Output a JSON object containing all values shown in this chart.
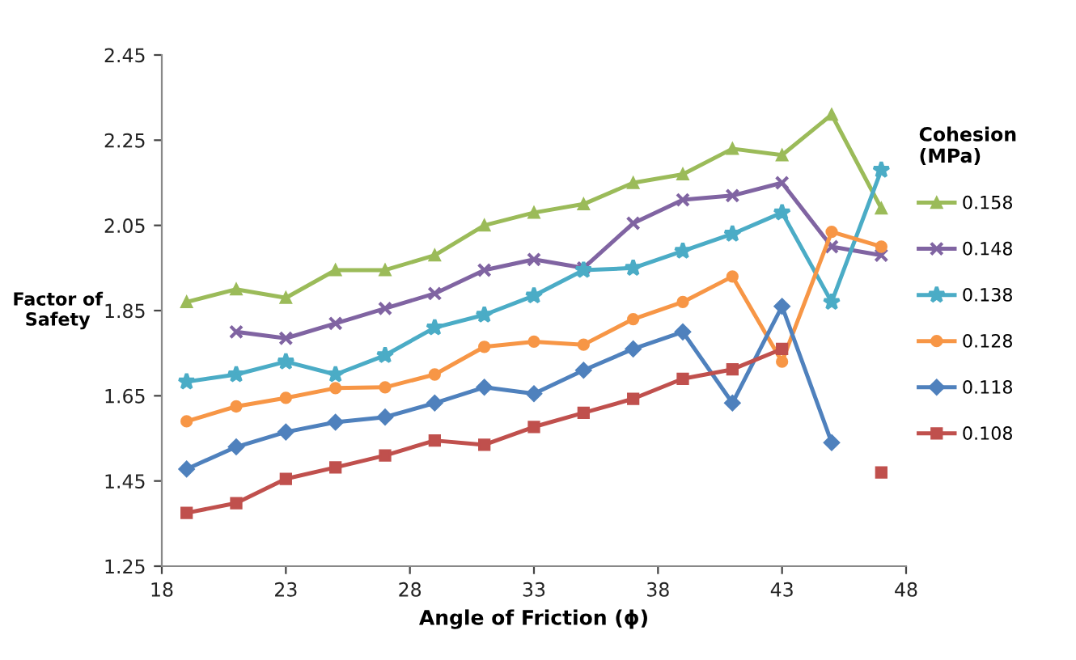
{
  "chart_data": {
    "type": "line",
    "xlabel": "Angle of Friction (ϕ)",
    "ylabel": "Factor of\nSafety",
    "legend_title": "Cohesion\n(MPa)",
    "x": [
      19,
      21,
      23,
      25,
      27,
      29,
      31,
      33,
      35,
      37,
      39,
      41,
      43,
      45,
      47
    ],
    "xlim": [
      18,
      48
    ],
    "xticks": [
      18,
      23,
      28,
      33,
      38,
      43,
      48
    ],
    "ylim": [
      1.25,
      2.45
    ],
    "yticks": [
      1.25,
      1.45,
      1.65,
      1.85,
      2.05,
      2.25,
      2.45
    ],
    "grid": false,
    "legend": "right",
    "line_style": "solid",
    "series": [
      {
        "name": "0.158",
        "color": "#9bbb59",
        "marker": "triangle",
        "values": [
          1.87,
          1.9,
          1.88,
          1.945,
          1.945,
          1.98,
          2.05,
          2.08,
          2.1,
          2.15,
          2.17,
          2.23,
          2.215,
          2.31,
          2.09
        ]
      },
      {
        "name": "0.148",
        "color": "#8064a2",
        "marker": "cross",
        "values": [
          null,
          1.8,
          1.785,
          1.82,
          1.855,
          1.89,
          1.945,
          1.97,
          1.95,
          2.055,
          2.11,
          2.12,
          2.15,
          2.0,
          1.98
        ]
      },
      {
        "name": "0.138",
        "color": "#4bacc6",
        "marker": "star",
        "values": [
          1.683,
          1.7,
          1.73,
          1.7,
          1.745,
          1.81,
          1.84,
          1.885,
          1.945,
          1.95,
          1.99,
          2.03,
          2.08,
          1.87,
          2.18
        ]
      },
      {
        "name": "0.128",
        "color": "#f79646",
        "marker": "circle",
        "values": [
          1.59,
          1.625,
          1.645,
          1.668,
          1.67,
          1.7,
          1.765,
          1.777,
          1.77,
          1.83,
          1.87,
          1.93,
          1.73,
          2.035,
          2.0
        ]
      },
      {
        "name": "0.118",
        "color": "#4f81bd",
        "marker": "diamond",
        "values": [
          1.478,
          1.53,
          1.565,
          1.588,
          1.6,
          1.633,
          1.67,
          1.655,
          1.71,
          1.76,
          1.8,
          1.633,
          1.86,
          1.54,
          null
        ]
      },
      {
        "name": "0.108",
        "color": "#c0504d",
        "marker": "square",
        "values": [
          1.375,
          1.398,
          1.455,
          1.482,
          1.51,
          1.545,
          1.535,
          1.577,
          1.61,
          1.643,
          1.69,
          1.712,
          1.76,
          null,
          1.47
        ]
      }
    ]
  }
}
